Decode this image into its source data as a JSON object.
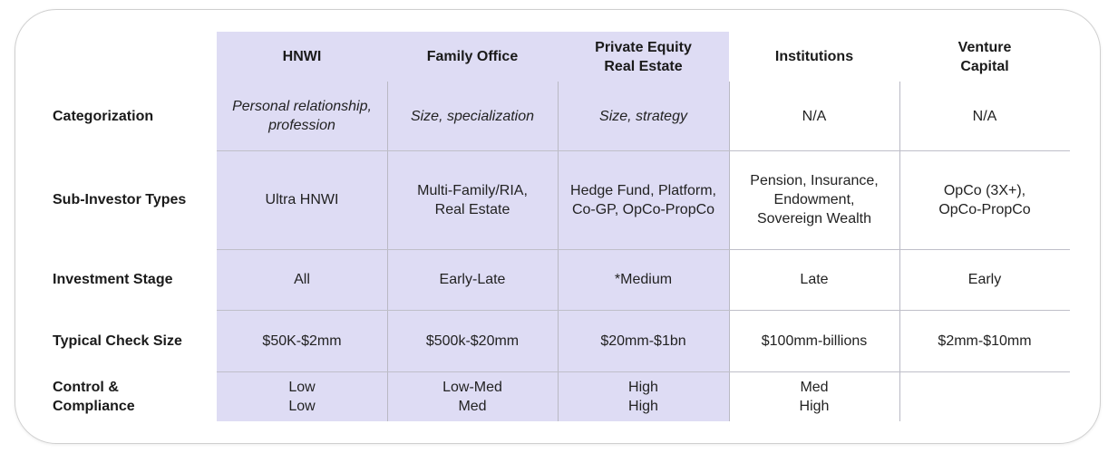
{
  "columns": [
    "HNWI",
    "Family Office",
    "Private Equity Real Estate",
    "Institutions",
    "Venture Capital"
  ],
  "column_lines": [
    [
      "HNWI"
    ],
    [
      "Family Office"
    ],
    [
      "Private Equity",
      "Real Estate"
    ],
    [
      "Institutions"
    ],
    [
      "Venture",
      "Capital"
    ]
  ],
  "rows": [
    {
      "label": [
        "Categorization"
      ],
      "italic_in_shaded": true,
      "cells": [
        [
          "Personal relationship,",
          "profession"
        ],
        [
          "Size, specialization"
        ],
        [
          "Size, strategy"
        ],
        [
          "N/A"
        ],
        [
          "N/A"
        ]
      ]
    },
    {
      "label": [
        "Sub-Investor Types"
      ],
      "cells": [
        [
          "Ultra HNWI"
        ],
        [
          "Multi-Family/RIA,",
          "Real Estate"
        ],
        [
          "Hedge Fund, Platform,",
          "Co-GP, OpCo-PropCo"
        ],
        [
          "Pension, Insurance,",
          "Endowment,",
          "Sovereign Wealth"
        ],
        [
          "OpCo (3X+),",
          "OpCo-PropCo"
        ]
      ]
    },
    {
      "label": [
        "Investment Stage"
      ],
      "cells": [
        [
          "All"
        ],
        [
          "Early-Late"
        ],
        [
          "*Medium"
        ],
        [
          "Late"
        ],
        [
          "Early"
        ]
      ]
    },
    {
      "label": [
        "Typical Check Size"
      ],
      "cells": [
        [
          "$50K-$2mm"
        ],
        [
          "$500k-$20mm"
        ],
        [
          "$20mm-$1bn"
        ],
        [
          "$100mm-billions"
        ],
        [
          "$2mm-$10mm"
        ]
      ]
    },
    {
      "label": [
        "Control &",
        "Compliance"
      ],
      "cells": [
        [
          "Low",
          "Low"
        ],
        [
          "Low-Med",
          "Med"
        ],
        [
          "High",
          "High"
        ],
        [
          "Med",
          "High"
        ],
        []
      ]
    }
  ]
}
